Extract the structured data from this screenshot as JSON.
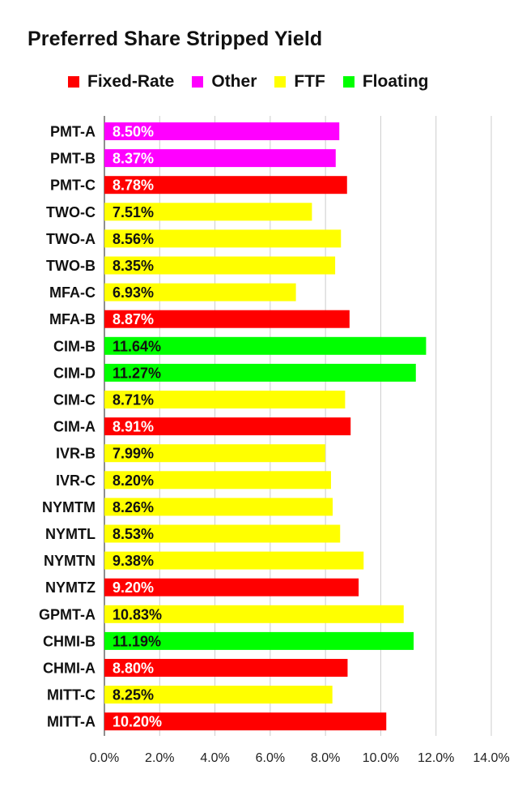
{
  "colors": {
    "Fixed-Rate": "#ff0000",
    "Other": "#ff00ff",
    "FTF": "#ffff00",
    "Floating": "#00ff00",
    "grid": "#cccccc",
    "axis": "#444444",
    "label_on_dark": "#ffffff",
    "label_on_light": "#111111"
  },
  "chart_data": {
    "type": "bar",
    "orientation": "horizontal",
    "title": "Preferred Share Stripped Yield",
    "legend": {
      "placement": "top",
      "entries": [
        "Fixed-Rate",
        "Other",
        "FTF",
        "Floating"
      ]
    },
    "xlim": [
      0,
      14
    ],
    "grid": true,
    "ticks": [
      "0.0%",
      "2.0%",
      "4.0%",
      "6.0%",
      "8.0%",
      "10.0%",
      "12.0%",
      "14.0%"
    ],
    "tick_values": [
      0,
      2,
      4,
      6,
      8,
      10,
      12,
      14
    ],
    "categories": [
      "PMT-A",
      "PMT-B",
      "PMT-C",
      "TWO-C",
      "TWO-A",
      "TWO-B",
      "MFA-C",
      "MFA-B",
      "CIM-B",
      "CIM-D",
      "CIM-C",
      "CIM-A",
      "IVR-B",
      "IVR-C",
      "NYMTM",
      "NYMTL",
      "NYMTN",
      "NYMTZ",
      "GPMT-A",
      "CHMI-B",
      "CHMI-A",
      "MITT-C",
      "MITT-A"
    ],
    "values": [
      8.5,
      8.37,
      8.78,
      7.51,
      8.56,
      8.35,
      6.93,
      8.87,
      11.64,
      11.27,
      8.71,
      8.91,
      7.99,
      8.2,
      8.26,
      8.53,
      9.38,
      9.2,
      10.83,
      11.19,
      8.8,
      8.25,
      10.2
    ],
    "value_labels": [
      "8.50%",
      "8.37%",
      "8.78%",
      "7.51%",
      "8.56%",
      "8.35%",
      "6.93%",
      "8.87%",
      "11.64%",
      "11.27%",
      "8.71%",
      "8.91%",
      "7.99%",
      "8.20%",
      "8.26%",
      "8.53%",
      "9.38%",
      "9.20%",
      "10.83%",
      "11.19%",
      "8.80%",
      "8.25%",
      "10.20%"
    ],
    "types": [
      "Other",
      "Other",
      "Fixed-Rate",
      "FTF",
      "FTF",
      "FTF",
      "FTF",
      "Fixed-Rate",
      "Floating",
      "Floating",
      "FTF",
      "Fixed-Rate",
      "FTF",
      "FTF",
      "FTF",
      "FTF",
      "FTF",
      "Fixed-Rate",
      "FTF",
      "Floating",
      "Fixed-Rate",
      "FTF",
      "Fixed-Rate"
    ]
  }
}
